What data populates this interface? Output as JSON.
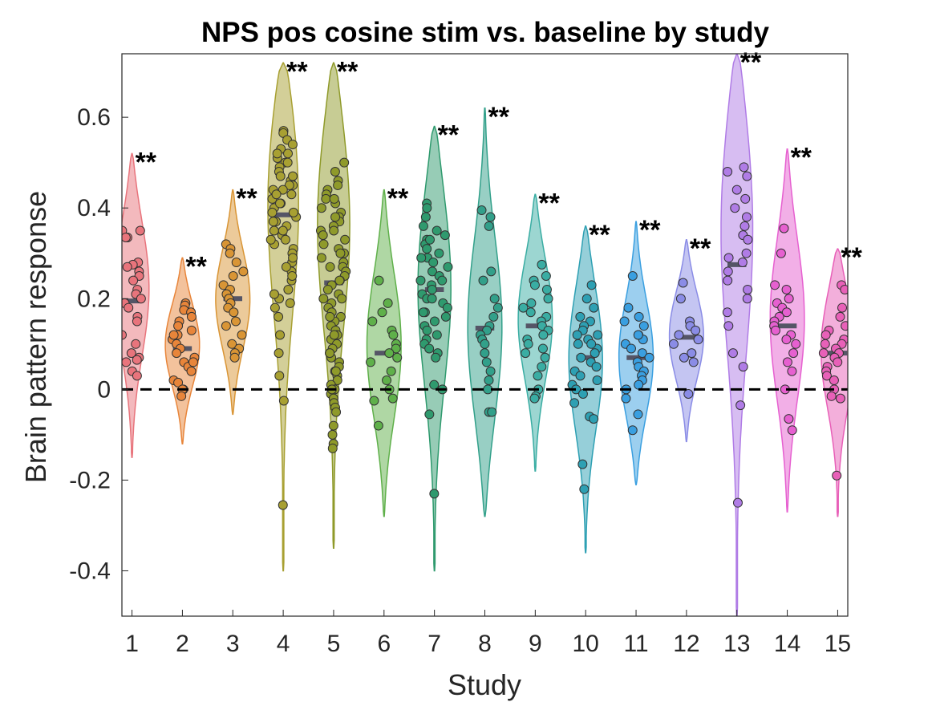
{
  "chart_data": {
    "type": "violin",
    "title": "NPS pos cosine stim vs. baseline by study",
    "xlabel": "Study",
    "ylabel": "Brain pattern response",
    "xlim": [
      0.8,
      15.2
    ],
    "ylim": [
      -0.5,
      0.74
    ],
    "yticks": [
      -0.4,
      -0.2,
      0,
      0.2,
      0.4,
      0.6
    ],
    "ytick_labels": [
      "-0.4",
      "-0.2",
      "0",
      "0.2",
      "0.4",
      "0.6"
    ],
    "reference_line": {
      "y": 0,
      "style": "dashed",
      "color": "#000000"
    },
    "grid": false,
    "studies": [
      {
        "label": "1",
        "color": "#e8747c",
        "mean": 0.195,
        "min": -0.15,
        "max": 0.52,
        "peak": 0.23,
        "significance": "**",
        "points": [
          0.35,
          0.35,
          0.335,
          0.335,
          0.28,
          0.275,
          0.27,
          0.26,
          0.25,
          0.24,
          0.22,
          0.21,
          0.2,
          0.19,
          0.18,
          0.16,
          0.15,
          0.12,
          0.1,
          0.08,
          0.07,
          0.065,
          0.06,
          0.04,
          0.03
        ]
      },
      {
        "label": "2",
        "color": "#e8853a",
        "mean": 0.09,
        "min": -0.12,
        "max": 0.29,
        "peak": 0.1,
        "significance": "**",
        "points": [
          0.19,
          0.185,
          0.175,
          0.17,
          0.16,
          0.15,
          0.14,
          0.13,
          0.12,
          0.11,
          0.1,
          0.09,
          0.08,
          0.07,
          0.06,
          0.05,
          0.04,
          0.02,
          0.015,
          0.0,
          0.0,
          -0.015,
          0.12,
          0.06
        ]
      },
      {
        "label": "3",
        "color": "#d99535",
        "mean": 0.2,
        "min": -0.055,
        "max": 0.44,
        "peak": 0.2,
        "significance": "**",
        "points": [
          0.32,
          0.31,
          0.3,
          0.28,
          0.26,
          0.25,
          0.23,
          0.22,
          0.21,
          0.2,
          0.19,
          0.18,
          0.17,
          0.15,
          0.14,
          0.12,
          0.1,
          0.09,
          0.08,
          0.07
        ]
      },
      {
        "label": "4",
        "color": "#a8a032",
        "mean": 0.385,
        "min": -0.4,
        "max": 0.72,
        "peak": 0.46,
        "significance": "**",
        "points": [
          0.57,
          0.565,
          0.55,
          0.54,
          0.53,
          0.52,
          0.51,
          0.5,
          0.49,
          0.48,
          0.47,
          0.46,
          0.45,
          0.44,
          0.43,
          0.42,
          0.41,
          0.4,
          0.39,
          0.38,
          0.37,
          0.36,
          0.35,
          0.34,
          0.33,
          0.32,
          0.31,
          0.3,
          0.28,
          0.26,
          0.24,
          0.22,
          0.2,
          0.18,
          0.12,
          0.08,
          0.03,
          -0.025,
          -0.255,
          0.45,
          0.44,
          0.5,
          0.52,
          0.47,
          0.43,
          0.41,
          0.39,
          0.37,
          0.35,
          0.33,
          0.29,
          0.27,
          0.25,
          0.21,
          0.19,
          0.16
        ]
      },
      {
        "label": "5",
        "color": "#8f9a2a",
        "mean": 0.235,
        "min": -0.35,
        "max": 0.72,
        "peak": 0.4,
        "significance": "**",
        "points": [
          0.5,
          0.48,
          0.46,
          0.44,
          0.43,
          0.42,
          0.41,
          0.4,
          0.39,
          0.38,
          0.37,
          0.36,
          0.35,
          0.34,
          0.33,
          0.32,
          0.31,
          0.3,
          0.29,
          0.28,
          0.27,
          0.26,
          0.25,
          0.24,
          0.23,
          0.22,
          0.21,
          0.2,
          0.19,
          0.18,
          0.17,
          0.16,
          0.15,
          0.14,
          0.13,
          0.12,
          0.11,
          0.1,
          0.09,
          0.08,
          0.07,
          0.06,
          0.05,
          0.04,
          0.03,
          0.02,
          0.01,
          0.0,
          -0.01,
          -0.02,
          -0.03,
          -0.04,
          -0.05,
          -0.08,
          -0.1,
          -0.12,
          -0.13,
          0.45,
          0.42,
          0.38,
          0.35,
          0.3,
          0.27,
          0.24,
          0.2,
          0.16,
          0.12,
          0.08,
          0.04,
          0.0
        ]
      },
      {
        "label": "6",
        "color": "#5fb04a",
        "mean": 0.08,
        "min": -0.28,
        "max": 0.44,
        "peak": 0.1,
        "significance": "**",
        "points": [
          0.24,
          0.19,
          0.17,
          0.15,
          0.13,
          0.12,
          0.1,
          0.09,
          0.08,
          0.07,
          0.06,
          0.04,
          0.02,
          0.0,
          -0.02,
          -0.025,
          -0.08
        ]
      },
      {
        "label": "7",
        "color": "#2f9a6e",
        "mean": 0.22,
        "min": -0.4,
        "max": 0.58,
        "peak": 0.25,
        "significance": "**",
        "points": [
          0.41,
          0.4,
          0.38,
          0.36,
          0.35,
          0.34,
          0.33,
          0.32,
          0.31,
          0.3,
          0.29,
          0.28,
          0.27,
          0.26,
          0.25,
          0.24,
          0.23,
          0.22,
          0.21,
          0.2,
          0.19,
          0.18,
          0.17,
          0.16,
          0.15,
          0.14,
          0.13,
          0.12,
          0.11,
          0.1,
          0.09,
          0.08,
          0.07,
          0.01,
          0.0,
          -0.055,
          -0.23,
          0.33,
          0.29,
          0.24,
          0.2,
          0.17
        ]
      },
      {
        "label": "8",
        "color": "#32a08a",
        "mean": 0.135,
        "min": -0.28,
        "max": 0.62,
        "peak": 0.13,
        "significance": "**",
        "points": [
          0.395,
          0.38,
          0.36,
          0.26,
          0.24,
          0.2,
          0.18,
          0.16,
          0.14,
          0.13,
          0.12,
          0.11,
          0.1,
          0.08,
          0.06,
          0.04,
          0.02,
          0.0,
          -0.05,
          -0.05
        ]
      },
      {
        "label": "9",
        "color": "#3aada3",
        "mean": 0.14,
        "min": -0.18,
        "max": 0.43,
        "peak": 0.16,
        "significance": "**",
        "points": [
          0.275,
          0.25,
          0.24,
          0.23,
          0.22,
          0.2,
          0.19,
          0.18,
          0.17,
          0.16,
          0.15,
          0.14,
          0.13,
          0.12,
          0.11,
          0.1,
          0.09,
          0.08,
          0.07,
          0.05,
          0.03,
          0.0,
          -0.015,
          -0.02
        ]
      },
      {
        "label": "10",
        "color": "#2ea0b3",
        "mean": 0.07,
        "min": -0.36,
        "max": 0.36,
        "peak": 0.08,
        "significance": "**",
        "points": [
          0.23,
          0.2,
          0.18,
          0.16,
          0.15,
          0.14,
          0.13,
          0.12,
          0.11,
          0.1,
          0.09,
          0.08,
          0.07,
          0.06,
          0.05,
          0.04,
          0.03,
          0.02,
          0.01,
          0.0,
          -0.01,
          -0.03,
          -0.06,
          -0.065,
          -0.165,
          -0.22,
          0.12,
          0.1
        ]
      },
      {
        "label": "11",
        "color": "#3a9fe0",
        "mean": 0.07,
        "min": -0.21,
        "max": 0.37,
        "peak": 0.07,
        "significance": "**",
        "points": [
          0.25,
          0.18,
          0.16,
          0.15,
          0.14,
          0.12,
          0.11,
          0.1,
          0.09,
          0.08,
          0.07,
          0.06,
          0.05,
          0.04,
          0.03,
          0.02,
          0.01,
          0.0,
          -0.02,
          -0.055,
          -0.09,
          0.12
        ]
      },
      {
        "label": "12",
        "color": "#8a8ce6",
        "mean": 0.115,
        "min": -0.115,
        "max": 0.33,
        "peak": 0.12,
        "significance": "**",
        "points": [
          0.235,
          0.2,
          0.15,
          0.14,
          0.13,
          0.12,
          0.11,
          0.1,
          0.08,
          0.07,
          0.06,
          -0.01
        ]
      },
      {
        "label": "13",
        "color": "#b07ce6",
        "mean": 0.275,
        "min": -0.5,
        "max": 0.74,
        "peak": 0.4,
        "significance": "**",
        "points": [
          0.49,
          0.48,
          0.47,
          0.44,
          0.42,
          0.4,
          0.38,
          0.36,
          0.34,
          0.33,
          0.3,
          0.29,
          0.28,
          0.26,
          0.24,
          0.22,
          0.2,
          0.17,
          0.14,
          0.08,
          0.05,
          -0.035,
          -0.25
        ]
      },
      {
        "label": "14",
        "color": "#e660d0",
        "mean": 0.14,
        "min": -0.27,
        "max": 0.53,
        "peak": 0.16,
        "significance": "**",
        "points": [
          0.355,
          0.3,
          0.23,
          0.22,
          0.2,
          0.19,
          0.18,
          0.17,
          0.16,
          0.15,
          0.14,
          0.13,
          0.12,
          0.11,
          0.1,
          0.08,
          0.06,
          0.04,
          0.0,
          -0.065,
          -0.09
        ]
      },
      {
        "label": "15",
        "color": "#e860b8",
        "mean": 0.08,
        "min": -0.28,
        "max": 0.31,
        "peak": 0.1,
        "significance": "**",
        "points": [
          0.23,
          0.22,
          0.18,
          0.16,
          0.14,
          0.13,
          0.12,
          0.11,
          0.1,
          0.09,
          0.08,
          0.07,
          0.06,
          0.05,
          0.04,
          0.03,
          0.02,
          0.0,
          -0.015,
          -0.02,
          -0.19,
          0.1,
          0.08
        ]
      }
    ]
  }
}
